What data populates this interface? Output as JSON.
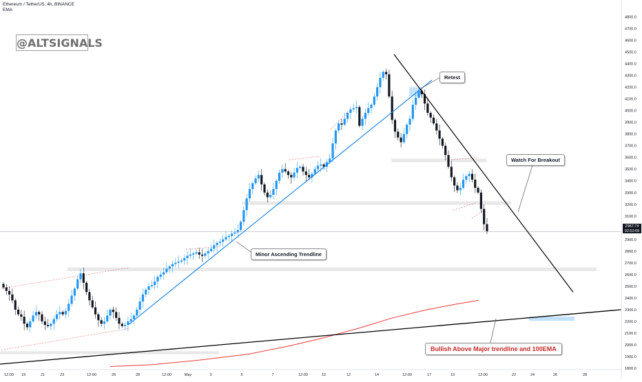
{
  "header": {
    "line1": "Ethereum / TetherUS, 4h, BINANCE",
    "line2": "EMA"
  },
  "watermark": "@ALTSIGNALS",
  "price_tag": {
    "price": "2967.74",
    "countdown": "02:53:09"
  },
  "annotations": {
    "retest": "Retest",
    "watch": "Watch For Breakout",
    "minor": "Minor Ascending Trendline",
    "bullish": "Bullish Above Major trendline and 100EMA"
  },
  "colors": {
    "up": "#2196f3",
    "down": "#131722",
    "ema": "#e53935",
    "trend_blue": "#1e88e5",
    "trend_black": "#000000",
    "zone_grey": "#e6e6e6",
    "zone_blue": "#bbdefb",
    "dashed_red": "#e57373"
  },
  "chart_data": {
    "type": "candlestick",
    "symbol": "Ethereum / TetherUS",
    "timeframe": "4h",
    "exchange": "BINANCE",
    "indicator": "EMA",
    "ylim": [
      1750,
      4850
    ],
    "y_ticks": [
      1800,
      1900,
      2000,
      2100,
      2200,
      2300,
      2400,
      2500,
      2600,
      2700,
      2800,
      2900,
      3000,
      3100,
      3200,
      3300,
      3400,
      3500,
      3600,
      3700,
      3800,
      3900,
      4000,
      4100,
      4200,
      4300,
      4400,
      4500,
      4600,
      4700,
      4800
    ],
    "x_ticks": [
      "12:00",
      "19",
      "21",
      "23",
      "12:00",
      "26",
      "28",
      "12:00",
      "May",
      "3",
      "5",
      "7",
      "12:00",
      "10",
      "12",
      "14",
      "12:00",
      "17",
      "19",
      "12:00",
      "22",
      "24",
      "26",
      "28"
    ],
    "last_price": 2967.74,
    "close_series": [
      2490,
      2460,
      2430,
      2380,
      2300,
      2260,
      2240,
      2180,
      2150,
      2200,
      2250,
      2280,
      2260,
      2200,
      2170,
      2160,
      2180,
      2220,
      2260,
      2280,
      2260,
      2290,
      2350,
      2420,
      2480,
      2560,
      2610,
      2530,
      2450,
      2380,
      2320,
      2260,
      2210,
      2180,
      2200,
      2250,
      2300,
      2280,
      2230,
      2180,
      2160,
      2170,
      2200,
      2220,
      2250,
      2300,
      2370,
      2430,
      2470,
      2500,
      2510,
      2540,
      2580,
      2600,
      2620,
      2650,
      2670,
      2690,
      2700,
      2710,
      2720,
      2740,
      2760,
      2770,
      2780,
      2790,
      2770,
      2760,
      2780,
      2800,
      2820,
      2850,
      2870,
      2880,
      2900,
      2920,
      2930,
      2950,
      2960,
      2980,
      3050,
      3150,
      3250,
      3330,
      3380,
      3420,
      3450,
      3370,
      3300,
      3260,
      3280,
      3330,
      3400,
      3470,
      3500,
      3480,
      3450,
      3430,
      3470,
      3510,
      3520,
      3480,
      3450,
      3430,
      3460,
      3500,
      3530,
      3540,
      3520,
      3560,
      3590,
      3720,
      3830,
      3890,
      3880,
      3930,
      3980,
      4010,
      4020,
      4030,
      3870,
      3930,
      3980,
      4020,
      4050,
      4120,
      4200,
      4280,
      4330,
      4310,
      4120,
      3920,
      3820,
      3770,
      3730,
      3800,
      3880,
      3930,
      4050,
      4110,
      4170,
      4140,
      4060,
      3980,
      3940,
      3890,
      3830,
      3760,
      3700,
      3620,
      3520,
      3430,
      3360,
      3320,
      3340,
      3410,
      3440,
      3460,
      3410,
      3340,
      3300,
      3160,
      3030,
      2970
    ],
    "trendlines": [
      {
        "name": "Minor Ascending Trendline",
        "points": [
          [
            "Apr 25 12:00",
            2160
          ],
          [
            "May 14 00:00",
            4160
          ]
        ]
      },
      {
        "name": "Descending resistance",
        "points": [
          [
            "May 12 12:00",
            4430
          ],
          [
            "May 25 00:00",
            2450
          ]
        ]
      },
      {
        "name": "Major trendline",
        "points": [
          [
            "Apr 17 12:00",
            1840
          ],
          [
            "May 28 12:00",
            2300
          ]
        ]
      }
    ],
    "zones": [
      {
        "label": "Retest",
        "range": [
          4120,
          4200
        ]
      },
      {
        "range": [
          3560,
          3590
        ]
      },
      {
        "range": [
          3195,
          3225
        ]
      },
      {
        "range": [
          2630,
          2660
        ]
      },
      {
        "range": [
          1920,
          1945
        ]
      },
      {
        "range": [
          2205,
          2240
        ]
      }
    ],
    "ema_100": [
      [
        1800
      ],
      [
        1830
      ],
      [
        1880
      ],
      [
        1960
      ],
      [
        2050
      ],
      [
        2150
      ],
      [
        2250
      ],
      [
        2330
      ],
      [
        2380
      ]
    ]
  }
}
